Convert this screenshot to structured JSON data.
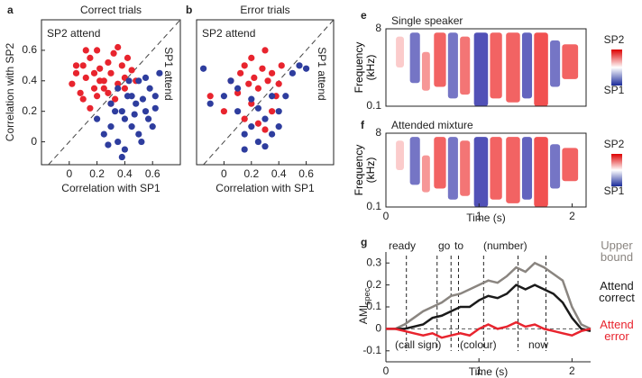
{
  "chart_data": [
    {
      "type": "scatter",
      "panel": "a",
      "title": "Correct trials",
      "xlabel": "Correlation with SP1",
      "ylabel": "Correlation with SP2",
      "xlim": [
        -0.2,
        0.8
      ],
      "ylim": [
        -0.15,
        0.8
      ],
      "xticks": [
        0,
        0.2,
        0.4,
        0.6
      ],
      "yticks": [
        0,
        0.2,
        0.4,
        0.6
      ],
      "diagonal": true,
      "series": [
        {
          "name": "SP2 attend",
          "color": "#e8242e",
          "x": [
            0.02,
            0.05,
            0.08,
            0.1,
            0.12,
            0.15,
            0.18,
            0.2,
            0.22,
            0.25,
            0.28,
            0.3,
            0.32,
            0.35,
            0.38,
            0.4,
            0.42,
            0.45,
            0.1,
            0.15,
            0.2,
            0.25,
            0.3,
            0.35,
            0.05,
            0.12,
            0.28,
            0.33,
            0.4,
            0.48,
            0.18,
            0.22
          ],
          "values": [
            0.38,
            0.45,
            0.32,
            0.5,
            0.42,
            0.55,
            0.35,
            0.6,
            0.48,
            0.4,
            0.52,
            0.45,
            0.58,
            0.38,
            0.5,
            0.42,
            0.55,
            0.47,
            0.28,
            0.22,
            0.3,
            0.35,
            0.25,
            0.62,
            0.5,
            0.6,
            0.32,
            0.28,
            0.35,
            0.4,
            0.45,
            0.4
          ]
        },
        {
          "name": "SP1 attend",
          "color": "#2e3d9e",
          "x": [
            0.2,
            0.25,
            0.3,
            0.35,
            0.38,
            0.4,
            0.42,
            0.45,
            0.48,
            0.5,
            0.52,
            0.55,
            0.58,
            0.6,
            0.62,
            0.65,
            0.3,
            0.35,
            0.4,
            0.45,
            0.5,
            0.55,
            0.28,
            0.33,
            0.43,
            0.47,
            0.53,
            0.57,
            0.62,
            0.38
          ],
          "values": [
            0.15,
            0.05,
            0.1,
            0.0,
            0.2,
            -0.05,
            0.3,
            0.1,
            0.25,
            0.4,
            0.0,
            0.2,
            0.35,
            0.1,
            0.3,
            0.45,
            0.25,
            0.35,
            0.15,
            0.3,
            0.05,
            0.42,
            -0.02,
            0.2,
            0.4,
            0.18,
            0.28,
            0.15,
            0.22,
            -0.1
          ]
        }
      ]
    },
    {
      "type": "scatter",
      "panel": "b",
      "title": "Error trials",
      "xlabel": "Correlation with SP1",
      "xlim": [
        -0.2,
        0.8
      ],
      "ylim": [
        -0.15,
        0.8
      ],
      "xticks": [
        0,
        0.2,
        0.4,
        0.6
      ],
      "diagonal": true,
      "series": [
        {
          "name": "SP2 attend",
          "color": "#e8242e",
          "x": [
            0.05,
            0.1,
            0.12,
            0.15,
            0.18,
            0.2,
            0.22,
            0.25,
            0.28,
            0.3,
            0.32,
            0.35,
            0.38,
            0.4,
            0.42,
            -0.1,
            0.0,
            0.15,
            0.25,
            0.35,
            0.3,
            0.2
          ],
          "values": [
            0.4,
            0.32,
            0.45,
            0.5,
            0.38,
            0.55,
            0.42,
            0.35,
            0.48,
            0.6,
            0.4,
            0.45,
            0.3,
            0.38,
            0.5,
            0.3,
            0.2,
            0.15,
            0.12,
            0.2,
            0.08,
            0.25
          ]
        },
        {
          "name": "SP1 attend",
          "color": "#2e3d9e",
          "x": [
            -0.15,
            -0.1,
            0.0,
            0.05,
            0.1,
            0.15,
            0.2,
            0.25,
            0.3,
            0.35,
            0.4,
            0.45,
            0.5,
            0.55,
            0.6,
            0.1,
            0.2,
            0.3,
            0.4,
            0.25,
            0.15,
            0.35
          ],
          "values": [
            0.48,
            0.25,
            0.3,
            0.4,
            0.2,
            -0.05,
            0.1,
            0.0,
            0.15,
            0.05,
            0.2,
            0.3,
            0.45,
            0.5,
            0.48,
            0.35,
            0.28,
            -0.03,
            0.1,
            0.22,
            0.05,
            0.3
          ]
        }
      ]
    },
    {
      "type": "spectrogram",
      "panel": "e",
      "title": "Single speaker",
      "ylabel": "Frequency (kHz)",
      "xlim": [
        0,
        2.15
      ],
      "ylim": [
        0.1,
        8
      ],
      "log_y": true,
      "yticks": [
        8,
        0.1
      ],
      "colorbar_labels": [
        "SP2",
        "SP1"
      ]
    },
    {
      "type": "spectrogram",
      "panel": "f",
      "title": "Attended mixture",
      "ylabel": "Frequency (kHz)",
      "xlabel": "Time (s)",
      "xlim": [
        0,
        2.15
      ],
      "ylim": [
        0.1,
        8
      ],
      "log_y": true,
      "yticks": [
        8,
        0.1
      ],
      "xticks": [
        0,
        1,
        2
      ],
      "colorbar_labels": [
        "SP2",
        "SP1"
      ]
    },
    {
      "type": "line",
      "panel": "g",
      "ylabel": "AMI",
      "ylabel_sub": "spec",
      "xlabel": "Time (s)",
      "xlim": [
        0,
        2.2
      ],
      "ylim": [
        -0.15,
        0.35
      ],
      "xticks": [
        0,
        1,
        2
      ],
      "yticks": [
        -0.1,
        0,
        0.1,
        0.2,
        0.3
      ],
      "event_times": [
        0.22,
        0.55,
        0.7,
        0.78,
        1.05,
        1.42,
        1.72
      ],
      "annotations": [
        "ready",
        "go",
        "to",
        "(number)",
        "(call sign)",
        "(colour)",
        "now"
      ],
      "x": [
        0,
        0.1,
        0.2,
        0.3,
        0.4,
        0.5,
        0.6,
        0.7,
        0.8,
        0.9,
        1.0,
        1.1,
        1.2,
        1.3,
        1.4,
        1.5,
        1.6,
        1.7,
        1.8,
        1.9,
        2.0,
        2.1,
        2.2
      ],
      "series": [
        {
          "name": "Upper bound",
          "color": "#8a8580",
          "values": [
            0,
            0,
            0.02,
            0.05,
            0.08,
            0.1,
            0.12,
            0.15,
            0.16,
            0.18,
            0.2,
            0.22,
            0.21,
            0.24,
            0.28,
            0.26,
            0.3,
            0.28,
            0.25,
            0.22,
            0.1,
            0.02,
            0
          ]
        },
        {
          "name": "Attend correct",
          "color": "#1a1a1a",
          "values": [
            0,
            0,
            0,
            0.01,
            0.02,
            0.05,
            0.06,
            0.08,
            0.1,
            0.1,
            0.13,
            0.15,
            0.14,
            0.16,
            0.2,
            0.18,
            0.2,
            0.18,
            0.16,
            0.12,
            0.05,
            0.0,
            -0.01
          ]
        },
        {
          "name": "Attend error",
          "color": "#e8242e",
          "values": [
            0,
            0,
            -0.01,
            -0.02,
            -0.03,
            -0.02,
            -0.04,
            -0.03,
            -0.02,
            -0.03,
            0.0,
            0.02,
            0.0,
            0.01,
            0.03,
            0.01,
            0.02,
            0.0,
            -0.01,
            -0.02,
            -0.03,
            -0.01,
            0
          ]
        }
      ]
    }
  ]
}
